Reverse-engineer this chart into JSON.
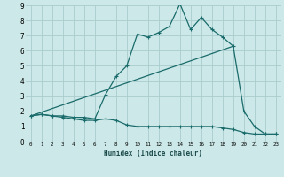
{
  "xlabel": "Humidex (Indice chaleur)",
  "bg_color": "#cce8e8",
  "grid_color": "#aacccc",
  "line_color": "#1a6b6b",
  "xlim": [
    -0.5,
    23.5
  ],
  "ylim": [
    0,
    9
  ],
  "xticks": [
    0,
    1,
    2,
    3,
    4,
    5,
    6,
    7,
    8,
    9,
    10,
    11,
    12,
    13,
    14,
    15,
    16,
    17,
    18,
    19,
    20,
    21,
    22,
    23
  ],
  "yticks": [
    0,
    1,
    2,
    3,
    4,
    5,
    6,
    7,
    8,
    9
  ],
  "line1_x": [
    0,
    1,
    2,
    3,
    4,
    5,
    6,
    7,
    8,
    9,
    10,
    11,
    12,
    13,
    14,
    15,
    16,
    17,
    18,
    19,
    20,
    21,
    22,
    23
  ],
  "line1_y": [
    1.7,
    1.8,
    1.7,
    1.6,
    1.5,
    1.4,
    1.4,
    1.5,
    1.4,
    1.1,
    1.0,
    1.0,
    1.0,
    1.0,
    1.0,
    1.0,
    1.0,
    1.0,
    0.9,
    0.8,
    0.6,
    0.5,
    0.5,
    0.5
  ],
  "line2_x": [
    0,
    1,
    2,
    3,
    4,
    5,
    6,
    7,
    8,
    9,
    10,
    11,
    12,
    13,
    14,
    15,
    16,
    17,
    18,
    19,
    20,
    21,
    22,
    23
  ],
  "line2_y": [
    1.7,
    1.8,
    1.7,
    1.7,
    1.6,
    1.6,
    1.5,
    3.1,
    4.3,
    5.0,
    7.1,
    6.9,
    7.2,
    7.6,
    9.1,
    7.4,
    8.2,
    7.4,
    6.9,
    6.3,
    2.0,
    1.0,
    0.5,
    0.5
  ],
  "line3_x": [
    0,
    19
  ],
  "line3_y": [
    1.7,
    6.3
  ]
}
